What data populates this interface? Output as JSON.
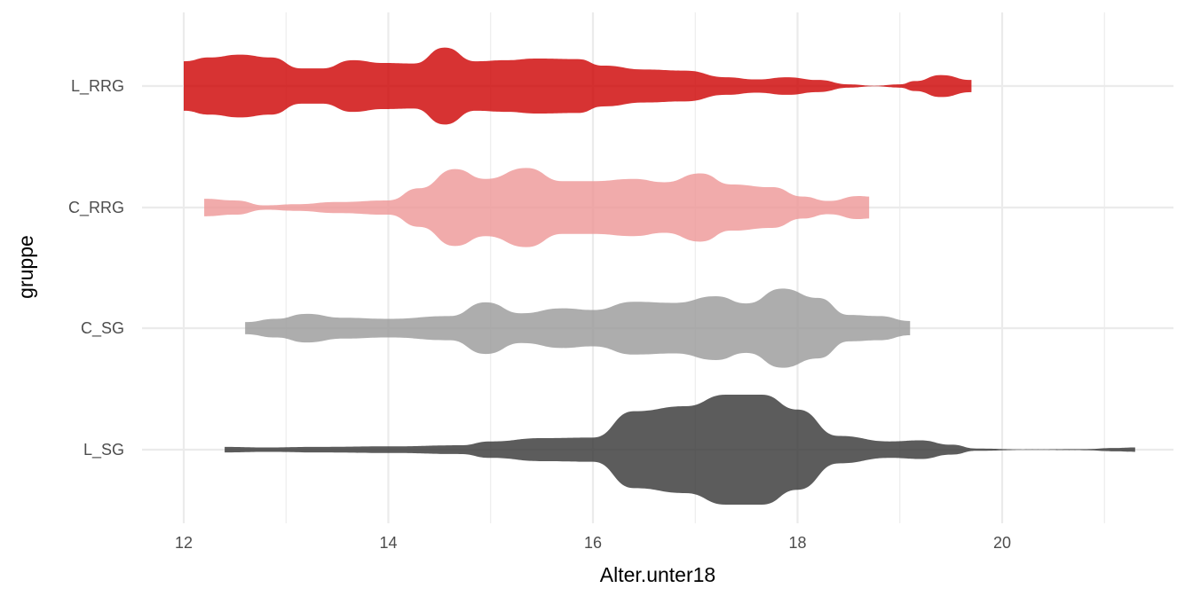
{
  "chart_data": {
    "type": "violin",
    "orientation": "horizontal",
    "xlabel": "Alter.unter18",
    "ylabel": "gruppe",
    "xlim": [
      11.6,
      21.5
    ],
    "x_ticks": [
      12,
      14,
      16,
      18,
      20
    ],
    "x_tick_labels": [
      "12",
      "14",
      "16",
      "18",
      "20"
    ],
    "grid": true,
    "categories": [
      "L_SG",
      "C_SG",
      "C_RRG",
      "L_RRG"
    ],
    "series": [
      {
        "category": "L_RRG",
        "color": "#cd0000",
        "range": [
          12.0,
          19.7
        ],
        "density": [
          [
            12.0,
            0.45
          ],
          [
            12.25,
            0.52
          ],
          [
            12.55,
            0.57
          ],
          [
            12.85,
            0.52
          ],
          [
            13.15,
            0.32
          ],
          [
            13.35,
            0.32
          ],
          [
            13.65,
            0.47
          ],
          [
            13.95,
            0.42
          ],
          [
            14.25,
            0.41
          ],
          [
            14.55,
            0.7
          ],
          [
            14.85,
            0.45
          ],
          [
            15.15,
            0.47
          ],
          [
            15.45,
            0.5
          ],
          [
            15.85,
            0.49
          ],
          [
            16.1,
            0.37
          ],
          [
            16.5,
            0.3
          ],
          [
            16.9,
            0.28
          ],
          [
            17.3,
            0.16
          ],
          [
            17.6,
            0.12
          ],
          [
            17.9,
            0.16
          ],
          [
            18.2,
            0.11
          ],
          [
            18.5,
            0.03
          ],
          [
            18.75,
            0.005
          ],
          [
            19.0,
            0.03
          ],
          [
            19.15,
            0.09
          ],
          [
            19.4,
            0.2
          ],
          [
            19.7,
            0.11
          ]
        ]
      },
      {
        "category": "C_RRG",
        "color": "#ee9696",
        "range": [
          12.2,
          18.7
        ],
        "density": [
          [
            12.2,
            0.16
          ],
          [
            12.5,
            0.13
          ],
          [
            12.8,
            0.04
          ],
          [
            13.1,
            0.06
          ],
          [
            13.5,
            0.1
          ],
          [
            14.0,
            0.13
          ],
          [
            14.3,
            0.35
          ],
          [
            14.65,
            0.7
          ],
          [
            14.95,
            0.52
          ],
          [
            15.35,
            0.72
          ],
          [
            15.7,
            0.48
          ],
          [
            16.0,
            0.48
          ],
          [
            16.4,
            0.52
          ],
          [
            16.7,
            0.46
          ],
          [
            17.05,
            0.62
          ],
          [
            17.35,
            0.42
          ],
          [
            17.75,
            0.37
          ],
          [
            18.05,
            0.2
          ],
          [
            18.3,
            0.12
          ],
          [
            18.6,
            0.21
          ],
          [
            18.7,
            0.2
          ]
        ]
      },
      {
        "category": "C_SG",
        "color": "#999999",
        "range": [
          12.6,
          19.1
        ],
        "density": [
          [
            12.6,
            0.11
          ],
          [
            12.9,
            0.17
          ],
          [
            13.2,
            0.26
          ],
          [
            13.55,
            0.19
          ],
          [
            14.0,
            0.17
          ],
          [
            14.6,
            0.22
          ],
          [
            14.95,
            0.47
          ],
          [
            15.3,
            0.27
          ],
          [
            15.7,
            0.36
          ],
          [
            16.0,
            0.33
          ],
          [
            16.4,
            0.48
          ],
          [
            16.8,
            0.46
          ],
          [
            17.2,
            0.58
          ],
          [
            17.5,
            0.45
          ],
          [
            17.85,
            0.72
          ],
          [
            18.2,
            0.55
          ],
          [
            18.5,
            0.24
          ],
          [
            18.8,
            0.22
          ],
          [
            19.1,
            0.13
          ]
        ]
      },
      {
        "category": "L_SG",
        "color": "#333333",
        "range": [
          12.4,
          21.3
        ],
        "density": [
          [
            12.4,
            0.05
          ],
          [
            12.8,
            0.04
          ],
          [
            13.3,
            0.05
          ],
          [
            14.0,
            0.06
          ],
          [
            14.7,
            0.08
          ],
          [
            15.0,
            0.15
          ],
          [
            15.5,
            0.21
          ],
          [
            16.0,
            0.22
          ],
          [
            16.4,
            0.7
          ],
          [
            16.9,
            0.79
          ],
          [
            17.3,
            1.0
          ],
          [
            17.65,
            1.0
          ],
          [
            18.0,
            0.73
          ],
          [
            18.4,
            0.25
          ],
          [
            18.9,
            0.15
          ],
          [
            19.2,
            0.17
          ],
          [
            19.5,
            0.09
          ],
          [
            19.75,
            0.02
          ],
          [
            20.2,
            0.005
          ],
          [
            20.8,
            0.01
          ],
          [
            21.1,
            0.03
          ],
          [
            21.3,
            0.04
          ]
        ]
      }
    ]
  }
}
